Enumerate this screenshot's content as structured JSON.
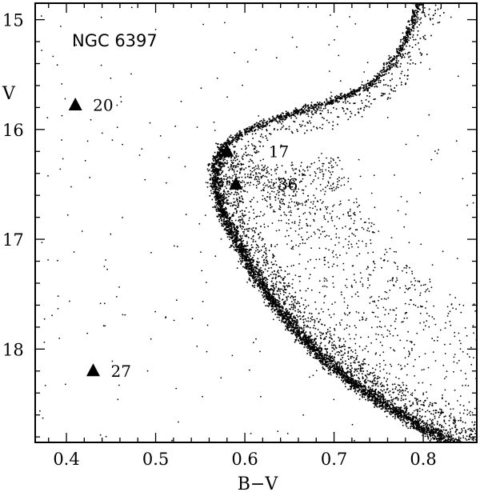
{
  "chart_data": {
    "type": "scatter",
    "title": "NGC 6397",
    "xlabel": "B−V",
    "ylabel": "V",
    "xlim": [
      0.365,
      0.86
    ],
    "ylim": [
      18.85,
      14.85
    ],
    "y_inverted": true,
    "grid": false,
    "legend": "none",
    "x_ticks": [
      {
        "value": 0.4,
        "label": "0.4"
      },
      {
        "value": 0.5,
        "label": "0.5"
      },
      {
        "value": 0.6,
        "label": "0.6"
      },
      {
        "value": 0.7,
        "label": "0.7"
      },
      {
        "value": 0.8,
        "label": "0.8"
      }
    ],
    "y_ticks": [
      {
        "value": 15,
        "label": "15"
      },
      {
        "value": 16,
        "label": "16"
      },
      {
        "value": 17,
        "label": "17"
      },
      {
        "value": 18,
        "label": "18"
      }
    ],
    "sequence_ridge": [
      {
        "bv": 0.856,
        "v": 18.95
      },
      {
        "bv": 0.8,
        "v": 18.72
      },
      {
        "bv": 0.76,
        "v": 18.52
      },
      {
        "bv": 0.72,
        "v": 18.3
      },
      {
        "bv": 0.69,
        "v": 18.1
      },
      {
        "bv": 0.66,
        "v": 17.85
      },
      {
        "bv": 0.63,
        "v": 17.55
      },
      {
        "bv": 0.61,
        "v": 17.3
      },
      {
        "bv": 0.59,
        "v": 17.0
      },
      {
        "bv": 0.575,
        "v": 16.75
      },
      {
        "bv": 0.567,
        "v": 16.5
      },
      {
        "bv": 0.568,
        "v": 16.3
      },
      {
        "bv": 0.578,
        "v": 16.15
      },
      {
        "bv": 0.6,
        "v": 16.02
      },
      {
        "bv": 0.63,
        "v": 15.92
      },
      {
        "bv": 0.66,
        "v": 15.84
      },
      {
        "bv": 0.7,
        "v": 15.74
      },
      {
        "bv": 0.74,
        "v": 15.6
      },
      {
        "bv": 0.77,
        "v": 15.35
      },
      {
        "bv": 0.79,
        "v": 15.0
      },
      {
        "bv": 0.8,
        "v": 14.7
      }
    ],
    "field_region": {
      "bv": [
        0.365,
        0.86
      ],
      "v": [
        14.85,
        18.85
      ]
    },
    "highlighted_stars": [
      {
        "label": "20",
        "bv": 0.41,
        "v": 15.78
      },
      {
        "label": "17",
        "bv": 0.58,
        "v": 16.2
      },
      {
        "label": "36",
        "bv": 0.59,
        "v": 16.5
      },
      {
        "label": "27",
        "bv": 0.43,
        "v": 18.2
      }
    ]
  }
}
